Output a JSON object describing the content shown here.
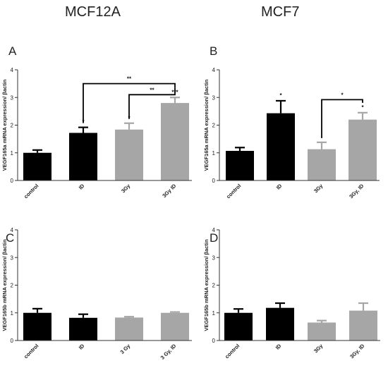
{
  "headers": {
    "left": "MCF12A",
    "right": "MCF7"
  },
  "colors": {
    "black": "#000000",
    "gray": "#a6a6a6"
  },
  "chart_data": [
    {
      "panel": "A",
      "type": "bar",
      "ylabel": "VEGF165a mRNA expression/ βactin",
      "ylim": [
        0,
        4
      ],
      "yticks": [
        "0",
        "1",
        "2",
        "3",
        "4"
      ],
      "categories": [
        "control",
        "ID",
        "3Gy",
        "3Gy ID"
      ],
      "values": [
        1.0,
        1.72,
        1.84,
        2.8
      ],
      "errors": [
        0.1,
        0.2,
        0.23,
        0.2
      ],
      "bar_colors": [
        "black",
        "black",
        "gray",
        "gray"
      ],
      "stars": [
        "",
        "*",
        "*",
        "***"
      ],
      "brackets": [
        {
          "from": 1,
          "to": 3,
          "y": 3.5,
          "label": "**"
        },
        {
          "from": 2,
          "to": 3,
          "y": 3.1,
          "label": "**"
        }
      ]
    },
    {
      "panel": "B",
      "type": "bar",
      "ylabel": "VEGF165a mRNA expression/ βactin",
      "ylim": [
        0,
        4
      ],
      "yticks": [
        "0",
        "1",
        "2",
        "3",
        "4"
      ],
      "categories": [
        "control",
        "ID",
        "3Gy",
        "3Gy, ID"
      ],
      "values": [
        1.07,
        2.43,
        1.13,
        2.2
      ],
      "errors": [
        0.12,
        0.45,
        0.25,
        0.25
      ],
      "bar_colors": [
        "black",
        "black",
        "gray",
        "gray"
      ],
      "stars": [
        "",
        "*",
        "",
        "*"
      ],
      "brackets": [
        {
          "from": 2,
          "to": 3,
          "y": 2.92,
          "label": "*"
        }
      ]
    },
    {
      "panel": "C",
      "type": "bar",
      "ylabel": "VEGF165b mRNA expression/ βactin",
      "ylim": [
        0,
        4
      ],
      "yticks": [
        "0",
        "1",
        "2",
        "3",
        "4"
      ],
      "categories": [
        "control",
        "ID",
        "3 Gy",
        "3 Gy, ID"
      ],
      "values": [
        1.0,
        0.82,
        0.83,
        1.0
      ],
      "errors": [
        0.15,
        0.13,
        0.03,
        0.03
      ],
      "bar_colors": [
        "black",
        "black",
        "gray",
        "gray"
      ],
      "stars": [
        "",
        "",
        "",
        ""
      ],
      "brackets": []
    },
    {
      "panel": "D",
      "type": "bar",
      "ylabel": "VEGF165b mRNA expression/ βactin",
      "ylim": [
        0,
        4
      ],
      "yticks": [
        "0",
        "1",
        "2",
        "3",
        "4"
      ],
      "categories": [
        "control",
        "ID",
        "3Gy",
        "3Gy, ID"
      ],
      "values": [
        1.0,
        1.18,
        0.65,
        1.08
      ],
      "errors": [
        0.14,
        0.17,
        0.07,
        0.27
      ],
      "bar_colors": [
        "black",
        "black",
        "gray",
        "gray"
      ],
      "stars": [
        "",
        "",
        "",
        ""
      ],
      "brackets": []
    }
  ]
}
